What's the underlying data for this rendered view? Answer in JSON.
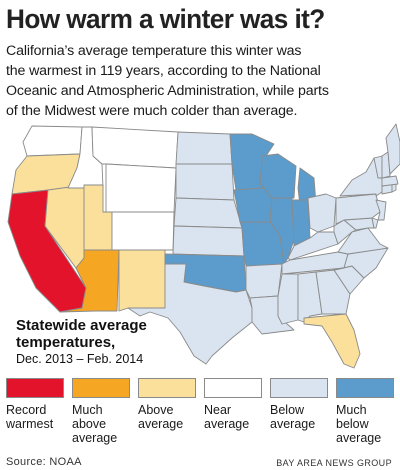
{
  "headline": "How warm a winter was it?",
  "intro_lines": [
    "California’s average temperature this winter was",
    "the warmest in 119 years, according to the National",
    "Oceanic and Atmospheric Administration, while parts",
    "of the Midwest were much colder than average."
  ],
  "map_title_lines": [
    "Statewide average",
    "temperatures,"
  ],
  "map_dates": "Dec. 2013 – Feb. 2014",
  "legend": [
    {
      "key": "record-warmest",
      "label": "Record\nwarmest",
      "color": "#e2132b"
    },
    {
      "key": "much-above-average",
      "label": "Much\nabove\naverage",
      "color": "#f5a623"
    },
    {
      "key": "above-average",
      "label": "Above\naverage",
      "color": "#fbe09c"
    },
    {
      "key": "near-average",
      "label": "Near\naverage",
      "color": "#ffffff"
    },
    {
      "key": "below-average",
      "label": "Below\naverage",
      "color": "#d9e4f0"
    },
    {
      "key": "much-below-average",
      "label": "Much\nbelow\naverage",
      "color": "#5b9ccc"
    }
  ],
  "source": "Source: NOAA",
  "credit": "BAY AREA NEWS GROUP",
  "state_categories": {
    "record-warmest": [
      "CA"
    ],
    "much-above-average": [
      "AZ"
    ],
    "above-average": [
      "OR",
      "NV",
      "UT",
      "NM",
      "FL"
    ],
    "near-average": [
      "WA",
      "ID",
      "MT",
      "WY",
      "CO"
    ],
    "below-average": [
      "ND",
      "SD",
      "NE",
      "KS",
      "TX",
      "LA",
      "AR",
      "MS",
      "AL",
      "GA",
      "SC",
      "NC",
      "TN",
      "KY",
      "VA",
      "WV",
      "OH",
      "PA",
      "NY",
      "VT",
      "NH",
      "ME",
      "MA",
      "CT",
      "RI",
      "NJ",
      "DE",
      "MD"
    ],
    "much-below-average": [
      "MN",
      "IA",
      "MO",
      "OK",
      "WI",
      "IL",
      "MI",
      "IN"
    ]
  }
}
